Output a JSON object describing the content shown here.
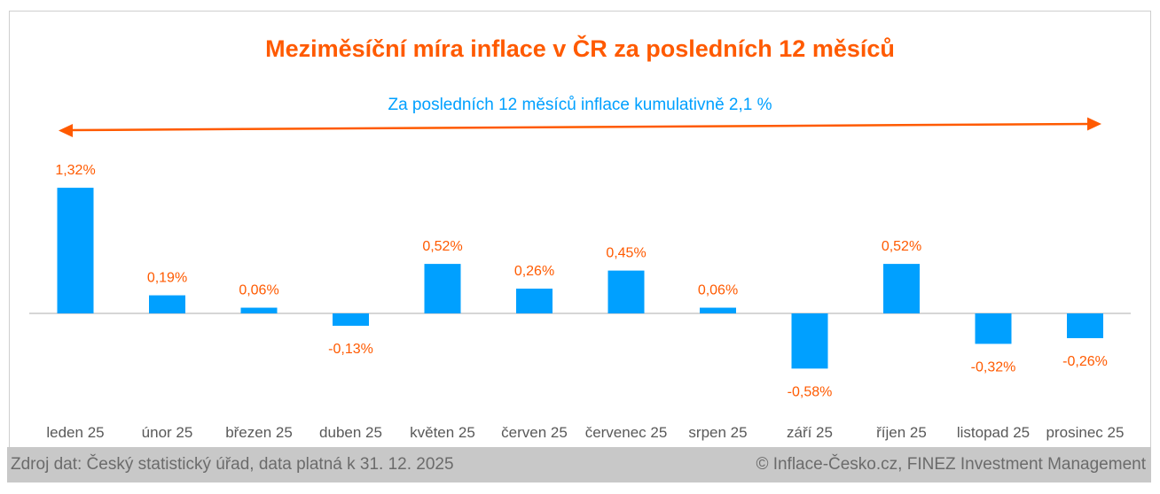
{
  "chart_data": {
    "type": "bar",
    "title": "Meziměsíční míra inflace v ČR za posledních 12 měsíců",
    "annotation": "Za posledních 12 měsíců inflace kumulativně 2,1 %",
    "categories": [
      "leden 25",
      "únor 25",
      "březen 25",
      "duben 25",
      "květen 25",
      "červen 25",
      "červenec 25",
      "srpen 25",
      "září 25",
      "říjen 25",
      "listopad 25",
      "prosinec 25"
    ],
    "values": [
      1.32,
      0.19,
      0.06,
      -0.13,
      0.52,
      0.26,
      0.45,
      0.06,
      -0.58,
      0.52,
      -0.32,
      -0.26
    ],
    "data_labels": [
      "1,32%",
      "0,19%",
      "0,06%",
      "-0,13%",
      "0,52%",
      "0,26%",
      "0,45%",
      "0,06%",
      "-0,58%",
      "0,52%",
      "-0,32%",
      "-0,26%"
    ],
    "xlabel": "",
    "ylabel": "",
    "ylim": [
      -0.7,
      1.5
    ],
    "grid": false,
    "colors": {
      "bar": "#00a0ff",
      "title": "#ff5a00",
      "label": "#ff5a00",
      "annotation": "#00a0ff",
      "arrow": "#ff5a00"
    }
  },
  "footer": {
    "source": "Zdroj dat: Český statistický úřad, data platná k 31. 12. 2025",
    "copyright": "© Inflace-Česko.cz, FINEZ Investment Management"
  }
}
